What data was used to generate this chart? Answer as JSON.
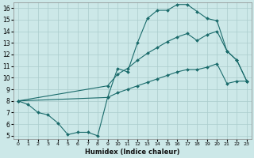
{
  "xlabel": "Humidex (Indice chaleur)",
  "bg_color": "#cce8e8",
  "line_color": "#1a6b6b",
  "grid_color": "#aacccc",
  "xlim": [
    -0.5,
    23.5
  ],
  "ylim": [
    4.7,
    16.5
  ],
  "xticks": [
    0,
    1,
    2,
    3,
    4,
    5,
    6,
    7,
    8,
    9,
    10,
    11,
    12,
    13,
    14,
    15,
    16,
    17,
    18,
    19,
    20,
    21,
    22,
    23
  ],
  "yticks": [
    5,
    6,
    7,
    8,
    9,
    10,
    11,
    12,
    13,
    14,
    15,
    16
  ],
  "line1_x": [
    0,
    1,
    2,
    3,
    4,
    5,
    6,
    7,
    8,
    9,
    10,
    11,
    12,
    13,
    14,
    15,
    16,
    17,
    18,
    19,
    20,
    21,
    22,
    23
  ],
  "line1_y": [
    8.0,
    7.7,
    7.0,
    6.8,
    6.1,
    5.1,
    5.3,
    5.3,
    5.0,
    8.3,
    10.8,
    10.5,
    13.0,
    15.1,
    15.8,
    15.8,
    16.3,
    16.3,
    15.7,
    15.1,
    14.9,
    12.3,
    11.5,
    9.7
  ],
  "line2_x": [
    0,
    9,
    10,
    11,
    12,
    13,
    14,
    15,
    16,
    17,
    18,
    19,
    20,
    21,
    22,
    23
  ],
  "line2_y": [
    8.0,
    9.3,
    10.3,
    10.8,
    11.5,
    12.1,
    12.6,
    13.1,
    13.5,
    13.8,
    13.2,
    13.7,
    14.0,
    12.3,
    11.5,
    9.7
  ],
  "line3_x": [
    0,
    9,
    10,
    11,
    12,
    13,
    14,
    15,
    16,
    17,
    18,
    19,
    20,
    21,
    22,
    23
  ],
  "line3_y": [
    8.0,
    8.3,
    8.7,
    9.0,
    9.3,
    9.6,
    9.9,
    10.2,
    10.5,
    10.7,
    10.7,
    10.9,
    11.2,
    9.5,
    9.7,
    9.7
  ]
}
